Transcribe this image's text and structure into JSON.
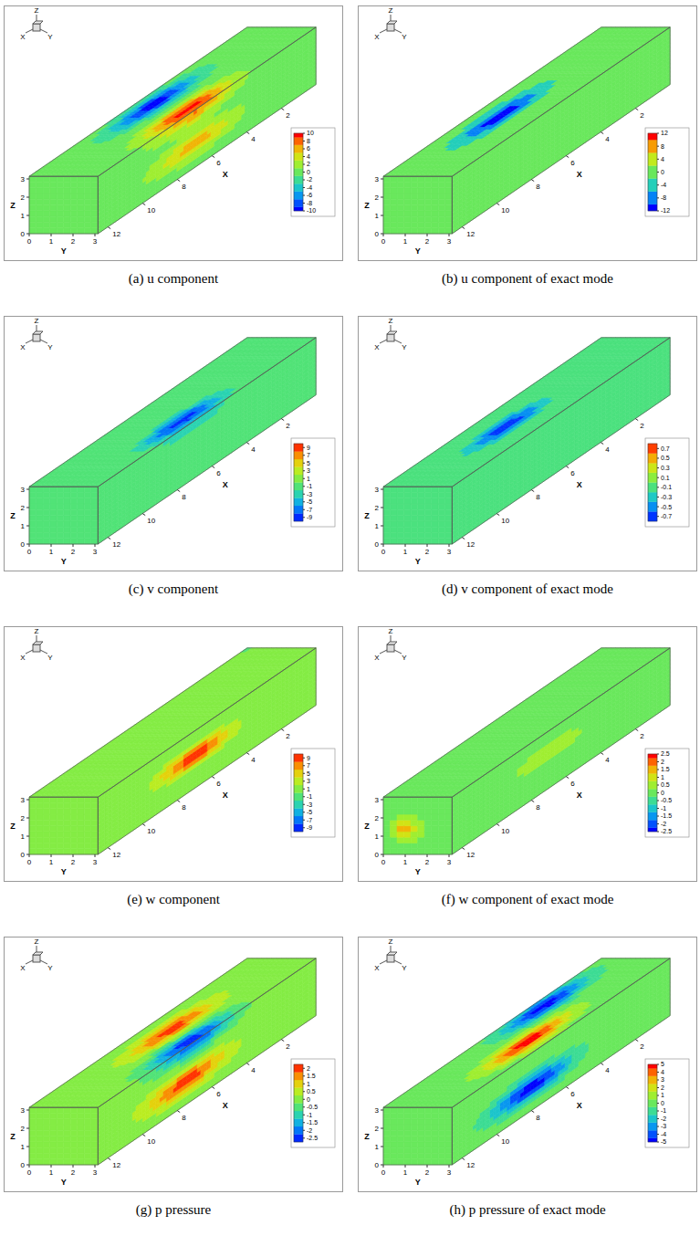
{
  "chart_data": [
    {
      "type": "contour3d",
      "title": "(a) u component",
      "axis_labels": {
        "x": "X",
        "y": "Y",
        "z": "Z"
      },
      "xlim": [
        0,
        12.57
      ],
      "ylim": [
        0,
        3.14
      ],
      "zlim": [
        0,
        3.14
      ],
      "xticks": [
        2,
        4,
        6,
        8,
        10,
        12
      ],
      "yticks": [
        0,
        1,
        2,
        3
      ],
      "zticks": [
        0,
        1,
        2,
        3
      ],
      "colorbar": {
        "range": [
          -10,
          10
        ],
        "ticks": [
          10,
          8,
          6,
          4,
          2,
          0,
          -2,
          -4,
          -6,
          -8,
          -10
        ]
      },
      "extrema": [
        {
          "x": 6.5,
          "y": 0.9,
          "z": 3.14,
          "value": -10
        },
        {
          "x": 7,
          "y": 2.8,
          "z": 3.14,
          "value": 10
        },
        {
          "x": 7,
          "y": 3.14,
          "z": 1.3,
          "value": 6
        }
      ]
    },
    {
      "type": "contour3d",
      "title": "(b) u component of exact mode",
      "axis_labels": {
        "x": "X",
        "y": "Y",
        "z": "Z"
      },
      "xlim": [
        0,
        12.57
      ],
      "ylim": [
        0,
        3.14
      ],
      "zlim": [
        0,
        3.14
      ],
      "xticks": [
        2,
        4,
        6,
        8,
        10,
        12
      ],
      "yticks": [
        0,
        1,
        2,
        3
      ],
      "zticks": [
        0,
        1,
        2,
        3
      ],
      "colorbar": {
        "range": [
          -12,
          12
        ],
        "ticks": [
          12,
          8,
          4,
          0,
          -4,
          -8,
          -12
        ]
      },
      "extrema": [
        {
          "x": 7.5,
          "y": 1.3,
          "z": 3.14,
          "value": -12
        }
      ]
    },
    {
      "type": "contour3d",
      "title": "(c) v component",
      "axis_labels": {
        "x": "X",
        "y": "Y",
        "z": "Z"
      },
      "xlim": [
        0,
        12.57
      ],
      "ylim": [
        0,
        3.14
      ],
      "zlim": [
        0,
        3.14
      ],
      "xticks": [
        2,
        4,
        6,
        8,
        10,
        12
      ],
      "yticks": [
        0,
        1,
        2,
        3
      ],
      "zticks": [
        0,
        1,
        2,
        3
      ],
      "colorbar": {
        "range": [
          -10,
          10
        ],
        "ticks": [
          9,
          7,
          5,
          3,
          1,
          -1,
          -3,
          -5,
          -7,
          -9
        ]
      },
      "extrema": [
        {
          "x": 7,
          "y": 2.6,
          "z": 3.14,
          "value": -9
        }
      ]
    },
    {
      "type": "contour3d",
      "title": "(d) v component of exact mode",
      "axis_labels": {
        "x": "X",
        "y": "Y",
        "z": "Z"
      },
      "xlim": [
        0,
        12.57
      ],
      "ylim": [
        0,
        3.14
      ],
      "zlim": [
        0,
        3.14
      ],
      "xticks": [
        2,
        4,
        6,
        8,
        10,
        12
      ],
      "yticks": [
        0,
        1,
        2,
        3
      ],
      "zticks": [
        0,
        1,
        2,
        3
      ],
      "colorbar": {
        "range": [
          -0.8,
          0.8
        ],
        "ticks": [
          0.7,
          0.5,
          0.3,
          0.1,
          -0.1,
          -0.3,
          -0.5,
          -0.7
        ]
      },
      "extrema": [
        {
          "x": 7.5,
          "y": 1.6,
          "z": 3.14,
          "value": -0.7
        }
      ]
    },
    {
      "type": "contour3d",
      "title": "(e) w component",
      "axis_labels": {
        "x": "X",
        "y": "Y",
        "z": "Z"
      },
      "xlim": [
        0,
        12.57
      ],
      "ylim": [
        0,
        3.14
      ],
      "zlim": [
        0,
        3.14
      ],
      "xticks": [
        2,
        4,
        6,
        8,
        10,
        12
      ],
      "yticks": [
        0,
        1,
        2,
        3
      ],
      "zticks": [
        0,
        1,
        2,
        3
      ],
      "colorbar": {
        "range": [
          -10,
          10
        ],
        "ticks": [
          9,
          7,
          5,
          3,
          1,
          -1,
          -3,
          -5,
          -7,
          -9
        ]
      },
      "extrema": [
        {
          "x": 7,
          "y": 3.14,
          "z": 1.8,
          "value": 9
        }
      ]
    },
    {
      "type": "contour3d",
      "title": "(f) w component of exact mode",
      "axis_labels": {
        "x": "X",
        "y": "Y",
        "z": "Z"
      },
      "xlim": [
        0,
        12.57
      ],
      "ylim": [
        0,
        3.14
      ],
      "zlim": [
        0,
        3.14
      ],
      "xticks": [
        2,
        4,
        6,
        8,
        10,
        12
      ],
      "yticks": [
        0,
        1,
        2,
        3
      ],
      "zticks": [
        0,
        1,
        2,
        3
      ],
      "colorbar": {
        "range": [
          -2.5,
          2.5
        ],
        "ticks": [
          2.5,
          2,
          1.5,
          1,
          0.5,
          0,
          -0.5,
          -1,
          -1.5,
          -2,
          -2.5
        ]
      },
      "extrema": [
        {
          "x": 12.57,
          "y": 1.0,
          "z": 1.4,
          "value": 1.5
        },
        {
          "x": 7,
          "y": 3.14,
          "z": 2,
          "value": 0.5
        }
      ]
    },
    {
      "type": "contour3d",
      "title": "(g) p pressure",
      "axis_labels": {
        "x": "X",
        "y": "Y",
        "z": "Z"
      },
      "xlim": [
        0,
        12.57
      ],
      "ylim": [
        0,
        3.14
      ],
      "zlim": [
        0,
        3.14
      ],
      "xticks": [
        2,
        4,
        6,
        8,
        10,
        12
      ],
      "yticks": [
        0,
        1,
        2,
        3
      ],
      "zticks": [
        0,
        1,
        2,
        3
      ],
      "colorbar": {
        "range": [
          -2.75,
          2.25
        ],
        "ticks": [
          2,
          1.5,
          1,
          0.5,
          0,
          -0.5,
          -1,
          -1.5,
          -2,
          -2.5
        ]
      },
      "extrema": [
        {
          "x": 6,
          "y": 1.3,
          "z": 3.14,
          "value": 2
        },
        {
          "x": 7,
          "y": 2.9,
          "z": 3.14,
          "value": -2.5
        },
        {
          "x": 7.5,
          "y": 3.14,
          "z": 1.3,
          "value": 2
        }
      ]
    },
    {
      "type": "contour3d",
      "title": "(h) p pressure of exact mode",
      "axis_labels": {
        "x": "X",
        "y": "Y",
        "z": "Z"
      },
      "xlim": [
        0,
        12.57
      ],
      "ylim": [
        0,
        3.14
      ],
      "zlim": [
        0,
        3.14
      ],
      "xticks": [
        2,
        4,
        6,
        8,
        10,
        12
      ],
      "yticks": [
        0,
        1,
        2,
        3
      ],
      "zticks": [
        0,
        1,
        2,
        3
      ],
      "colorbar": {
        "range": [
          -5,
          5
        ],
        "ticks": [
          5,
          4,
          3,
          2,
          1,
          0,
          -1,
          -2,
          -3,
          -4,
          -5
        ]
      },
      "extrema": [
        {
          "x": 4,
          "y": 0.6,
          "z": 3.14,
          "value": -5
        },
        {
          "x": 7,
          "y": 2.2,
          "z": 3.14,
          "value": 5
        },
        {
          "x": 8,
          "y": 3.14,
          "z": 1.3,
          "value": -5
        }
      ]
    }
  ]
}
